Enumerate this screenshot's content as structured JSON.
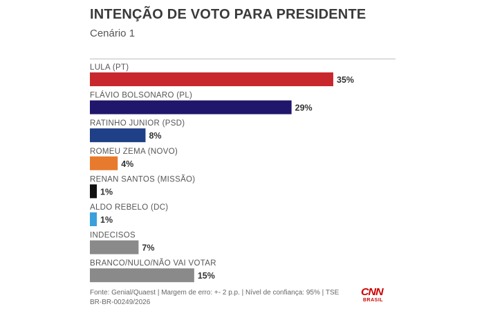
{
  "header": {
    "title": "INTENÇÃO DE VOTO PARA PRESIDENTE",
    "subtitle": "Cenário 1"
  },
  "chart_data": {
    "type": "bar",
    "orientation": "horizontal",
    "categories": [
      "LULA (PT)",
      "FLÁVIO BOLSONARO (PL)",
      "RATINHO JUNIOR (PSD)",
      "ROMEU ZEMA (NOVO)",
      "RENAN SANTOS (MISSÃO)",
      "ALDO REBELO (DC)",
      "INDECISOS",
      "BRANCO/NULO/NÃO VAI VOTAR"
    ],
    "values": [
      35,
      29,
      8,
      4,
      1,
      1,
      7,
      15
    ],
    "value_labels": [
      "35%",
      "29%",
      "8%",
      "4%",
      "1%",
      "1%",
      "7%",
      "15%"
    ],
    "colors": [
      "#c8282d",
      "#20166b",
      "#1f3f86",
      "#e87a2d",
      "#111111",
      "#3aa0dc",
      "#8a8a8a",
      "#8a8a8a"
    ],
    "xlim": [
      0,
      35
    ],
    "grid": false,
    "title": "INTENÇÃO DE VOTO PARA PRESIDENTE",
    "subtitle": "Cenário 1"
  },
  "footer": {
    "source": "Fonte: Genial/Quaest | Margem de erro: +- 2 p.p. | Nível de confiança: 95% | TSE BR-BR-00249/2026"
  },
  "logo": {
    "word": "CNN",
    "sub": "BRASIL"
  }
}
